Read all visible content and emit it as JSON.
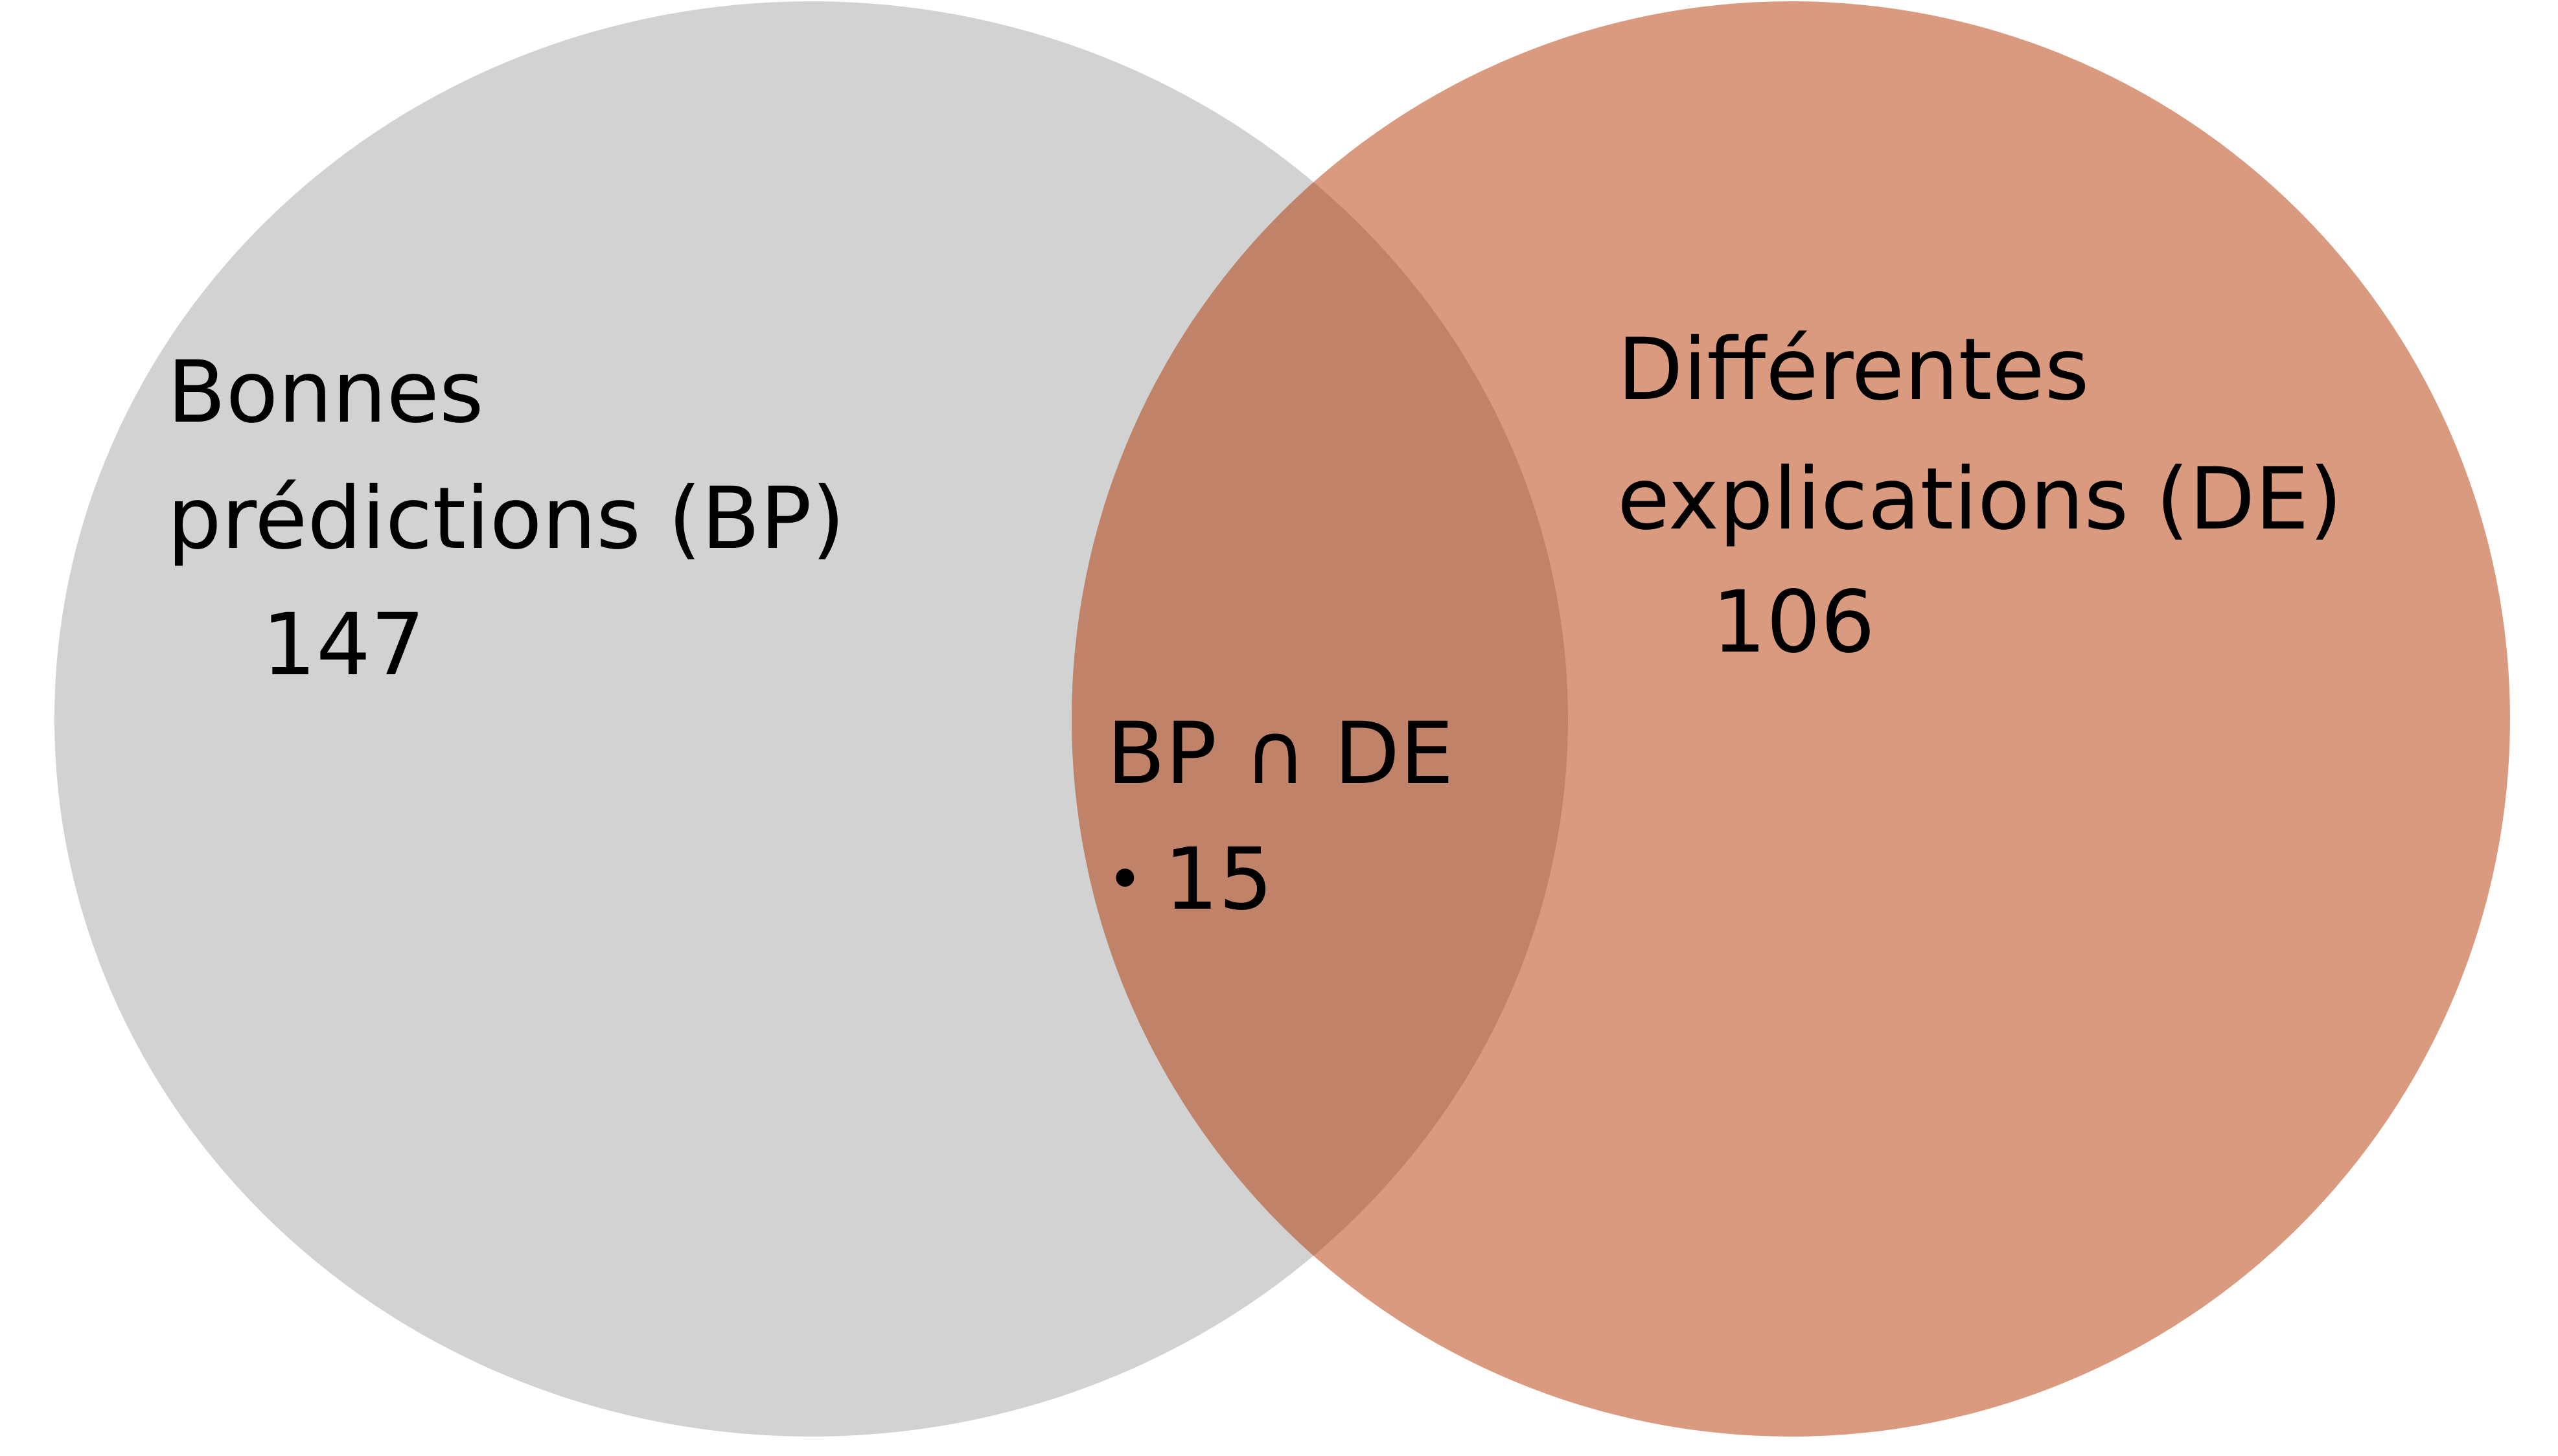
{
  "diagram": {
    "type": "venn",
    "sets": [
      {
        "id": "bp",
        "label_line1": "Bonnes",
        "label_line2": "prédictions (BP)",
        "count": "147",
        "color": "#d2d2d2"
      },
      {
        "id": "de",
        "label_line1": "Différentes",
        "label_line2": "explications (DE)",
        "count": "106",
        "color": "#d99a7f"
      }
    ],
    "intersection": {
      "label": "BP ∩ DE",
      "bullet": "•",
      "count": "15",
      "color": "#c08369"
    }
  }
}
